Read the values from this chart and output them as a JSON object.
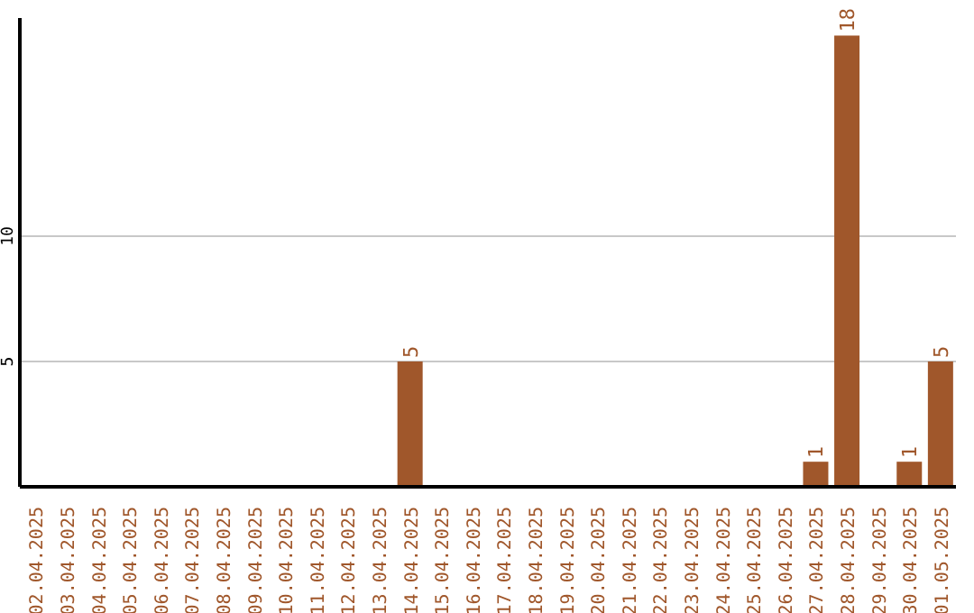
{
  "chart_data": {
    "type": "bar",
    "categories": [
      "02.04.2025",
      "03.04.2025",
      "04.04.2025",
      "05.04.2025",
      "06.04.2025",
      "07.04.2025",
      "08.04.2025",
      "09.04.2025",
      "10.04.2025",
      "11.04.2025",
      "12.04.2025",
      "13.04.2025",
      "14.04.2025",
      "15.04.2025",
      "16.04.2025",
      "17.04.2025",
      "18.04.2025",
      "19.04.2025",
      "20.04.2025",
      "21.04.2025",
      "22.04.2025",
      "23.04.2025",
      "24.04.2025",
      "25.04.2025",
      "26.04.2025",
      "27.04.2025",
      "28.04.2025",
      "29.04.2025",
      "30.04.2025",
      "01.05.2025"
    ],
    "values": [
      0,
      0,
      0,
      0,
      0,
      0,
      0,
      0,
      0,
      0,
      0,
      0,
      5,
      0,
      0,
      0,
      0,
      0,
      0,
      0,
      0,
      0,
      0,
      0,
      0,
      1,
      18,
      0,
      1,
      5
    ],
    "value_labels": [
      null,
      null,
      null,
      null,
      null,
      null,
      null,
      null,
      null,
      null,
      null,
      null,
      "5",
      null,
      null,
      null,
      null,
      null,
      null,
      null,
      null,
      null,
      null,
      null,
      null,
      "1",
      "18",
      null,
      "1",
      "5"
    ],
    "color": "#a0572b",
    "ylim": [
      0,
      18.7
    ],
    "yticks": [
      5,
      10
    ],
    "grid": "y"
  }
}
